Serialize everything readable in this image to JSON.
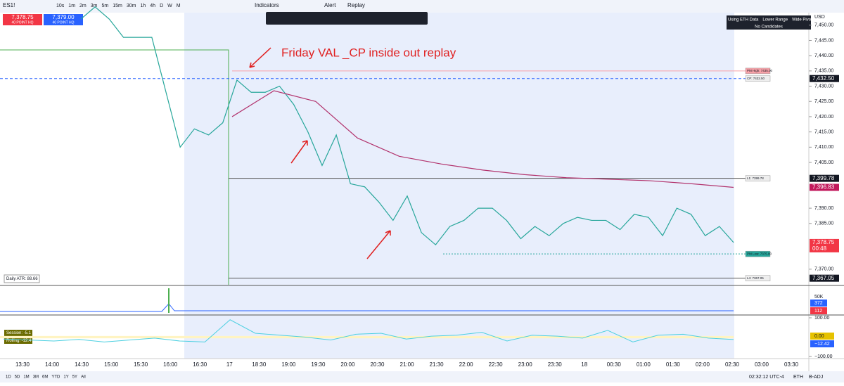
{
  "toolbar": {
    "symbol": "ES1!",
    "timeframes": [
      "10s",
      "1m",
      "2m",
      "3m",
      "5m",
      "15m",
      "30m",
      "1h",
      "4h",
      "D",
      "W",
      "M"
    ],
    "indicators": "Indicators",
    "alert": "Alert",
    "replay": "Replay"
  },
  "quote": {
    "bid": "7,378.75",
    "bid_label": "40 POINT HQ",
    "ask": "7,379.00",
    "ask_label": "40 POINT HQ"
  },
  "status_table": {
    "cells": [
      "Using ETH Data",
      "Lower Range",
      "Wide Pivots"
    ],
    "note": "No Candidates"
  },
  "chart": {
    "currency": "USD",
    "annotation": "Friday VAL _CP inside out replay",
    "atr": "Daily ATR: 88.66",
    "ylim": [
      7364.9,
      7454.1
    ],
    "yticks": [
      {
        "value": 7450,
        "label": "7,450.00"
      },
      {
        "value": 7445,
        "label": "7,445.00"
      },
      {
        "value": 7440,
        "label": "7,440.00"
      },
      {
        "value": 7435,
        "label": "7,435.00"
      },
      {
        "value": 7430,
        "label": "7,430.00"
      },
      {
        "value": 7425,
        "label": "7,425.00"
      },
      {
        "value": 7420,
        "label": "7,420.00"
      },
      {
        "value": 7415,
        "label": "7,415.00"
      },
      {
        "value": 7410,
        "label": "7,410.00"
      },
      {
        "value": 7405,
        "label": "7,405.00"
      },
      {
        "value": 7390,
        "label": "7,390.00"
      },
      {
        "value": 7385,
        "label": "7,385.00"
      },
      {
        "value": 7370,
        "label": "7,370.00"
      }
    ],
    "price": [
      7452,
      7456,
      7452,
      7446,
      7446,
      7446,
      7428,
      7410,
      7416,
      7414,
      7418,
      7432,
      7428,
      7428,
      7430,
      7424,
      7415,
      7404,
      7414,
      7398,
      7397,
      7392,
      7386,
      7394,
      7382,
      7378,
      7384,
      7386,
      7390,
      7390,
      7386,
      7380,
      7384,
      7381,
      7385,
      7387,
      7386,
      7386,
      7383,
      7388,
      7387,
      7381,
      7390,
      7388,
      7381,
      7384,
      7378.75
    ],
    "vwap": [
      7420,
      7428.5,
      7425,
      7413,
      7407,
      7404.5,
      7402.5,
      7401,
      7400,
      7399.5,
      7399,
      7398,
      7396.83
    ],
    "levels": [
      {
        "label": "PM High: 7435.00",
        "value": 7435
      },
      {
        "label": "CP: 7432.50",
        "value": 7432.5
      },
      {
        "label": "L1: 7399.78",
        "value": 7399.78
      },
      {
        "label": "PM Low: 7375.00",
        "value": 7375
      },
      {
        "label": "L4: 7367.05",
        "value": 7367.05
      }
    ],
    "tags": [
      {
        "value": 7432.5,
        "label": "7,432.50"
      },
      {
        "value": 7399.78,
        "label": "7,399.78"
      },
      {
        "value": 7396.83,
        "label": "7,396.83"
      },
      {
        "value": 7378.75,
        "label": "7,378.75"
      },
      {
        "value": 7367.05,
        "label": "7,367.05"
      }
    ],
    "countdown": "00:48",
    "time_ticks": [
      "13:30",
      "14:00",
      "14:30",
      "15:00",
      "15:30",
      "16:00",
      "16:30",
      "17",
      "18:30",
      "19:00",
      "19:30",
      "20:00",
      "20:30",
      "21:00",
      "21:30",
      "22:00",
      "22:30",
      "23:00",
      "23:30",
      "18",
      "00:30",
      "01:00",
      "01:30",
      "02:00",
      "02:30",
      "03:00",
      "03:30"
    ]
  },
  "volume_pane": {
    "scale": "50K",
    "buy": "372",
    "sell": "112"
  },
  "oscillator": {
    "ylim": [
      -100,
      100
    ],
    "yticks": [
      {
        "value": 100,
        "label": "100.00"
      },
      {
        "value": -100,
        "label": "−100.00"
      }
    ],
    "values": [
      -10,
      -15,
      -20,
      -12,
      -25,
      -15,
      -5,
      -20,
      -25,
      90,
      20,
      10,
      0,
      -15,
      15,
      20,
      -10,
      5,
      10,
      25,
      -20,
      10,
      5,
      -5,
      35,
      -25,
      10,
      15,
      -5,
      -12.42
    ],
    "zero_tag": "0.00",
    "last_tag": "−12.42",
    "session": "Session: -5.1",
    "rolling": "Rolling: -12.4"
  },
  "footer": {
    "ranges": [
      "1D",
      "5D",
      "1M",
      "3M",
      "6M",
      "YTD",
      "1Y",
      "5Y",
      "All"
    ],
    "clock": "02:32:12 UTC-4",
    "session": "ETH",
    "adjust": "B-ADJ"
  }
}
